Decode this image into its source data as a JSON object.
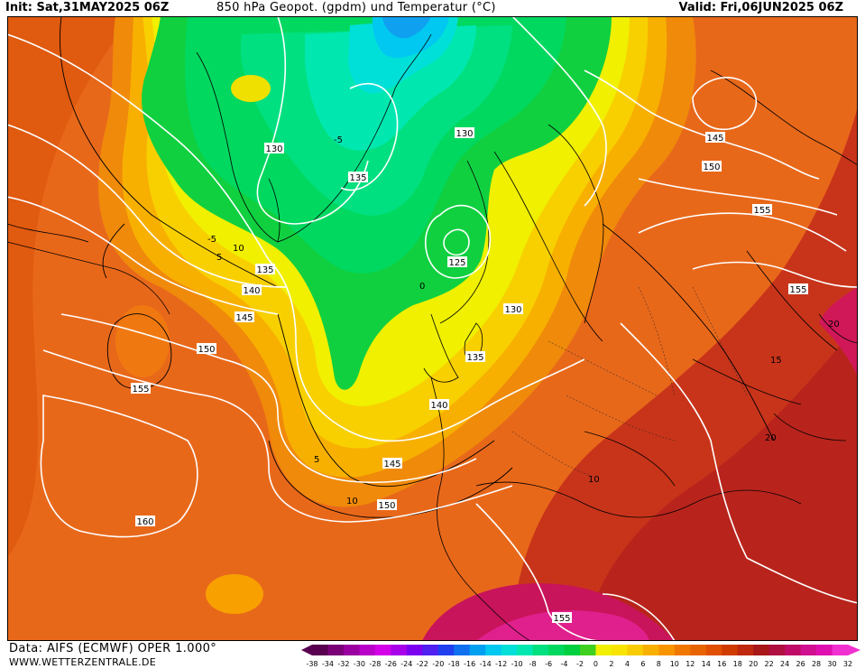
{
  "header": {
    "init": "Init: Sat,31MAY2025 06Z",
    "title": "850 hPa Geopot. (gpdm) und Temperatur (°C)",
    "valid": "Valid: Fri,06JUN2025 06Z"
  },
  "footer": {
    "data_source": "Data: AIFS (ECMWF) OPER 1.000°",
    "website": "WWW.WETTERZENTRALE.DE"
  },
  "colorbar": {
    "ticks": [
      "-38",
      "-34",
      "-32",
      "-30",
      "-28",
      "-26",
      "-24",
      "-22",
      "-20",
      "-18",
      "-16",
      "-14",
      "-12",
      "-10",
      "-8",
      "-6",
      "-4",
      "-2",
      "0",
      "2",
      "4",
      "6",
      "8",
      "10",
      "12",
      "14",
      "16",
      "18",
      "20",
      "22",
      "24",
      "26",
      "28",
      "30",
      "32"
    ],
    "colors": [
      "#5a0050",
      "#7a0078",
      "#9a00a0",
      "#b800c8",
      "#d400e8",
      "#a800e8",
      "#7c00f0",
      "#5020f0",
      "#2040f0",
      "#1070f0",
      "#00a0f0",
      "#00c8f0",
      "#00e0d8",
      "#00e8b0",
      "#00e080",
      "#00d860",
      "#00d040",
      "#40d020",
      "#f0f000",
      "#f8e400",
      "#f8cc00",
      "#f8b000",
      "#f89400",
      "#f07800",
      "#e86400",
      "#e05000",
      "#d03c00",
      "#c02810",
      "#a81818",
      "#b01040",
      "#c00c68",
      "#d01090",
      "#e010b0",
      "#f030d0"
    ]
  },
  "map": {
    "ocean_color": "#e86a10",
    "geopotential_labels": [
      "130",
      "135",
      "125",
      "130",
      "135",
      "140",
      "145",
      "150",
      "155",
      "160",
      "145",
      "150",
      "155",
      "155",
      "140",
      "135",
      "130",
      "145",
      "150",
      "155"
    ],
    "temperature_labels": [
      "-5",
      "0",
      "5",
      "10",
      "15",
      "20",
      "-5",
      "10",
      "5",
      "10",
      "20"
    ]
  }
}
